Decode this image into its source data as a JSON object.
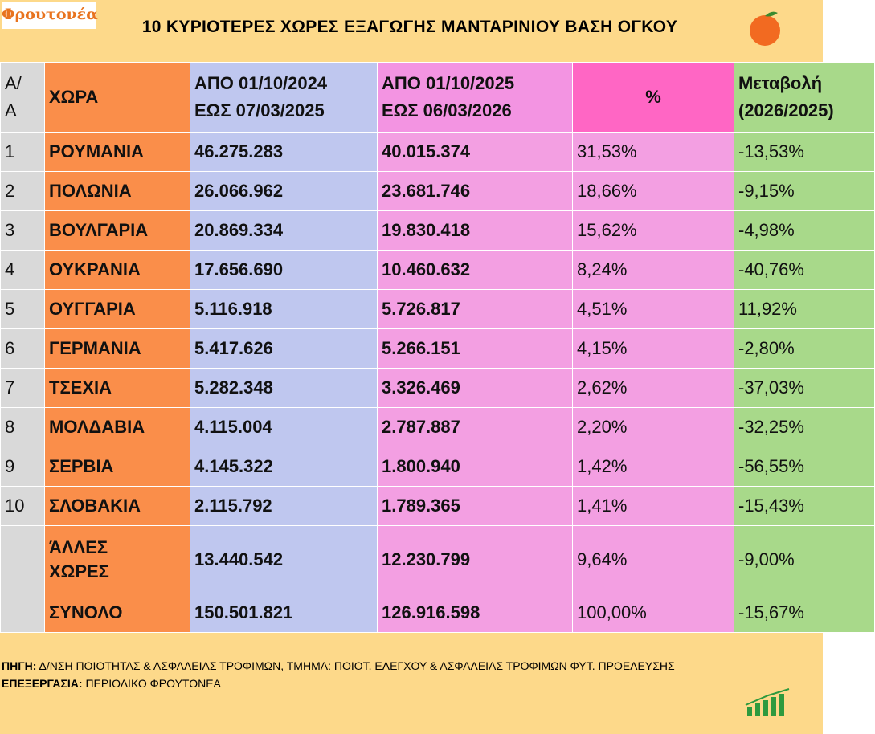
{
  "logo": "Φρουτονέα",
  "header": {
    "title": "10 ΚΥΡΙΟΤΕΡΕΣ ΧΩΡΕΣ ΕΞΑΓΩΓΗΣ ΜΑΝΤΑΡΙΝΙΟΥ ΒΑΣΗ ΟΓΚΟΥ"
  },
  "table": {
    "columns": [
      [
        "Α/",
        "Α"
      ],
      [
        "ΧΩΡΑ"
      ],
      [
        "ΑΠΟ 01/10/2024",
        "ΕΩΣ  07/03/2025"
      ],
      [
        "ΑΠΟ 01/10/2025",
        "ΕΩΣ  06/03/2026"
      ],
      [
        "%"
      ],
      [
        "Μεταβολή",
        "(2026/2025)"
      ]
    ],
    "rows": [
      [
        "1",
        "ΡΟΥΜΑΝΙΑ",
        "46.275.283",
        "40.015.374",
        "31,53%",
        "-13,53%"
      ],
      [
        "2",
        "ΠΟΛΩΝΙΑ",
        "26.066.962",
        "23.681.746",
        "18,66%",
        "-9,15%"
      ],
      [
        "3",
        "ΒΟΥΛΓΑΡΙΑ",
        "20.869.334",
        "19.830.418",
        "15,62%",
        "-4,98%"
      ],
      [
        "4",
        "ΟΥΚΡΑΝΙΑ",
        "17.656.690",
        "10.460.632",
        "8,24%",
        "-40,76%"
      ],
      [
        "5",
        "ΟΥΓΓΑΡΙΑ",
        "5.116.918",
        "5.726.817",
        "4,51%",
        "11,92%"
      ],
      [
        "6",
        "ΓΕΡΜΑΝΙΑ",
        "5.417.626",
        "5.266.151",
        "4,15%",
        "-2,80%"
      ],
      [
        "7",
        "ΤΣΕΧΙΑ",
        "5.282.348",
        "3.326.469",
        "2,62%",
        "-37,03%"
      ],
      [
        "8",
        "ΜΟΛΔΑΒΙΑ",
        "4.115.004",
        "2.787.887",
        "2,20%",
        "-32,25%"
      ],
      [
        "9",
        "ΣΕΡΒΙΑ",
        "4.145.322",
        "1.800.940",
        "1,42%",
        "-56,55%"
      ],
      [
        "10",
        "ΣΛΟΒΑΚΙΑ",
        "2.115.792",
        "1.789.365",
        "1,41%",
        "-15,43%"
      ],
      [
        null,
        "ΆΛΛΕΣ ΧΩΡΕΣ",
        "13.440.542",
        "12.230.799",
        "9,64%",
        "-9,00%"
      ],
      [
        null,
        "ΣΥΝΟΛΟ",
        "150.501.821",
        "126.916.598",
        "100,00%",
        "-15,67%"
      ]
    ]
  },
  "footer": {
    "source_label": "ΠΗΓΗ:",
    "source_text": "Δ/ΝΣΗ ΠΟΙΟΤΗΤΑΣ & ΑΣΦΑΛΕΙΑΣ ΤΡΟΦΙΜΩΝ, ΤΜΗΜΑ: ΠΟΙΟΤ. ΕΛΕΓΧΟΥ & ΑΣΦΑΛΕΙΑΣ ΤΡΟΦΙΜΩΝ ΦΥΤ. ΠΡΟΕΛΕΥΣΗΣ",
    "processing_label": "ΕΠΕΞΕΡΓΑΣΙΑ:",
    "processing_text": "ΠΕΡΙΟΔΙΚΟ ΦΡΟΥΤΟΝΕΑ"
  }
}
